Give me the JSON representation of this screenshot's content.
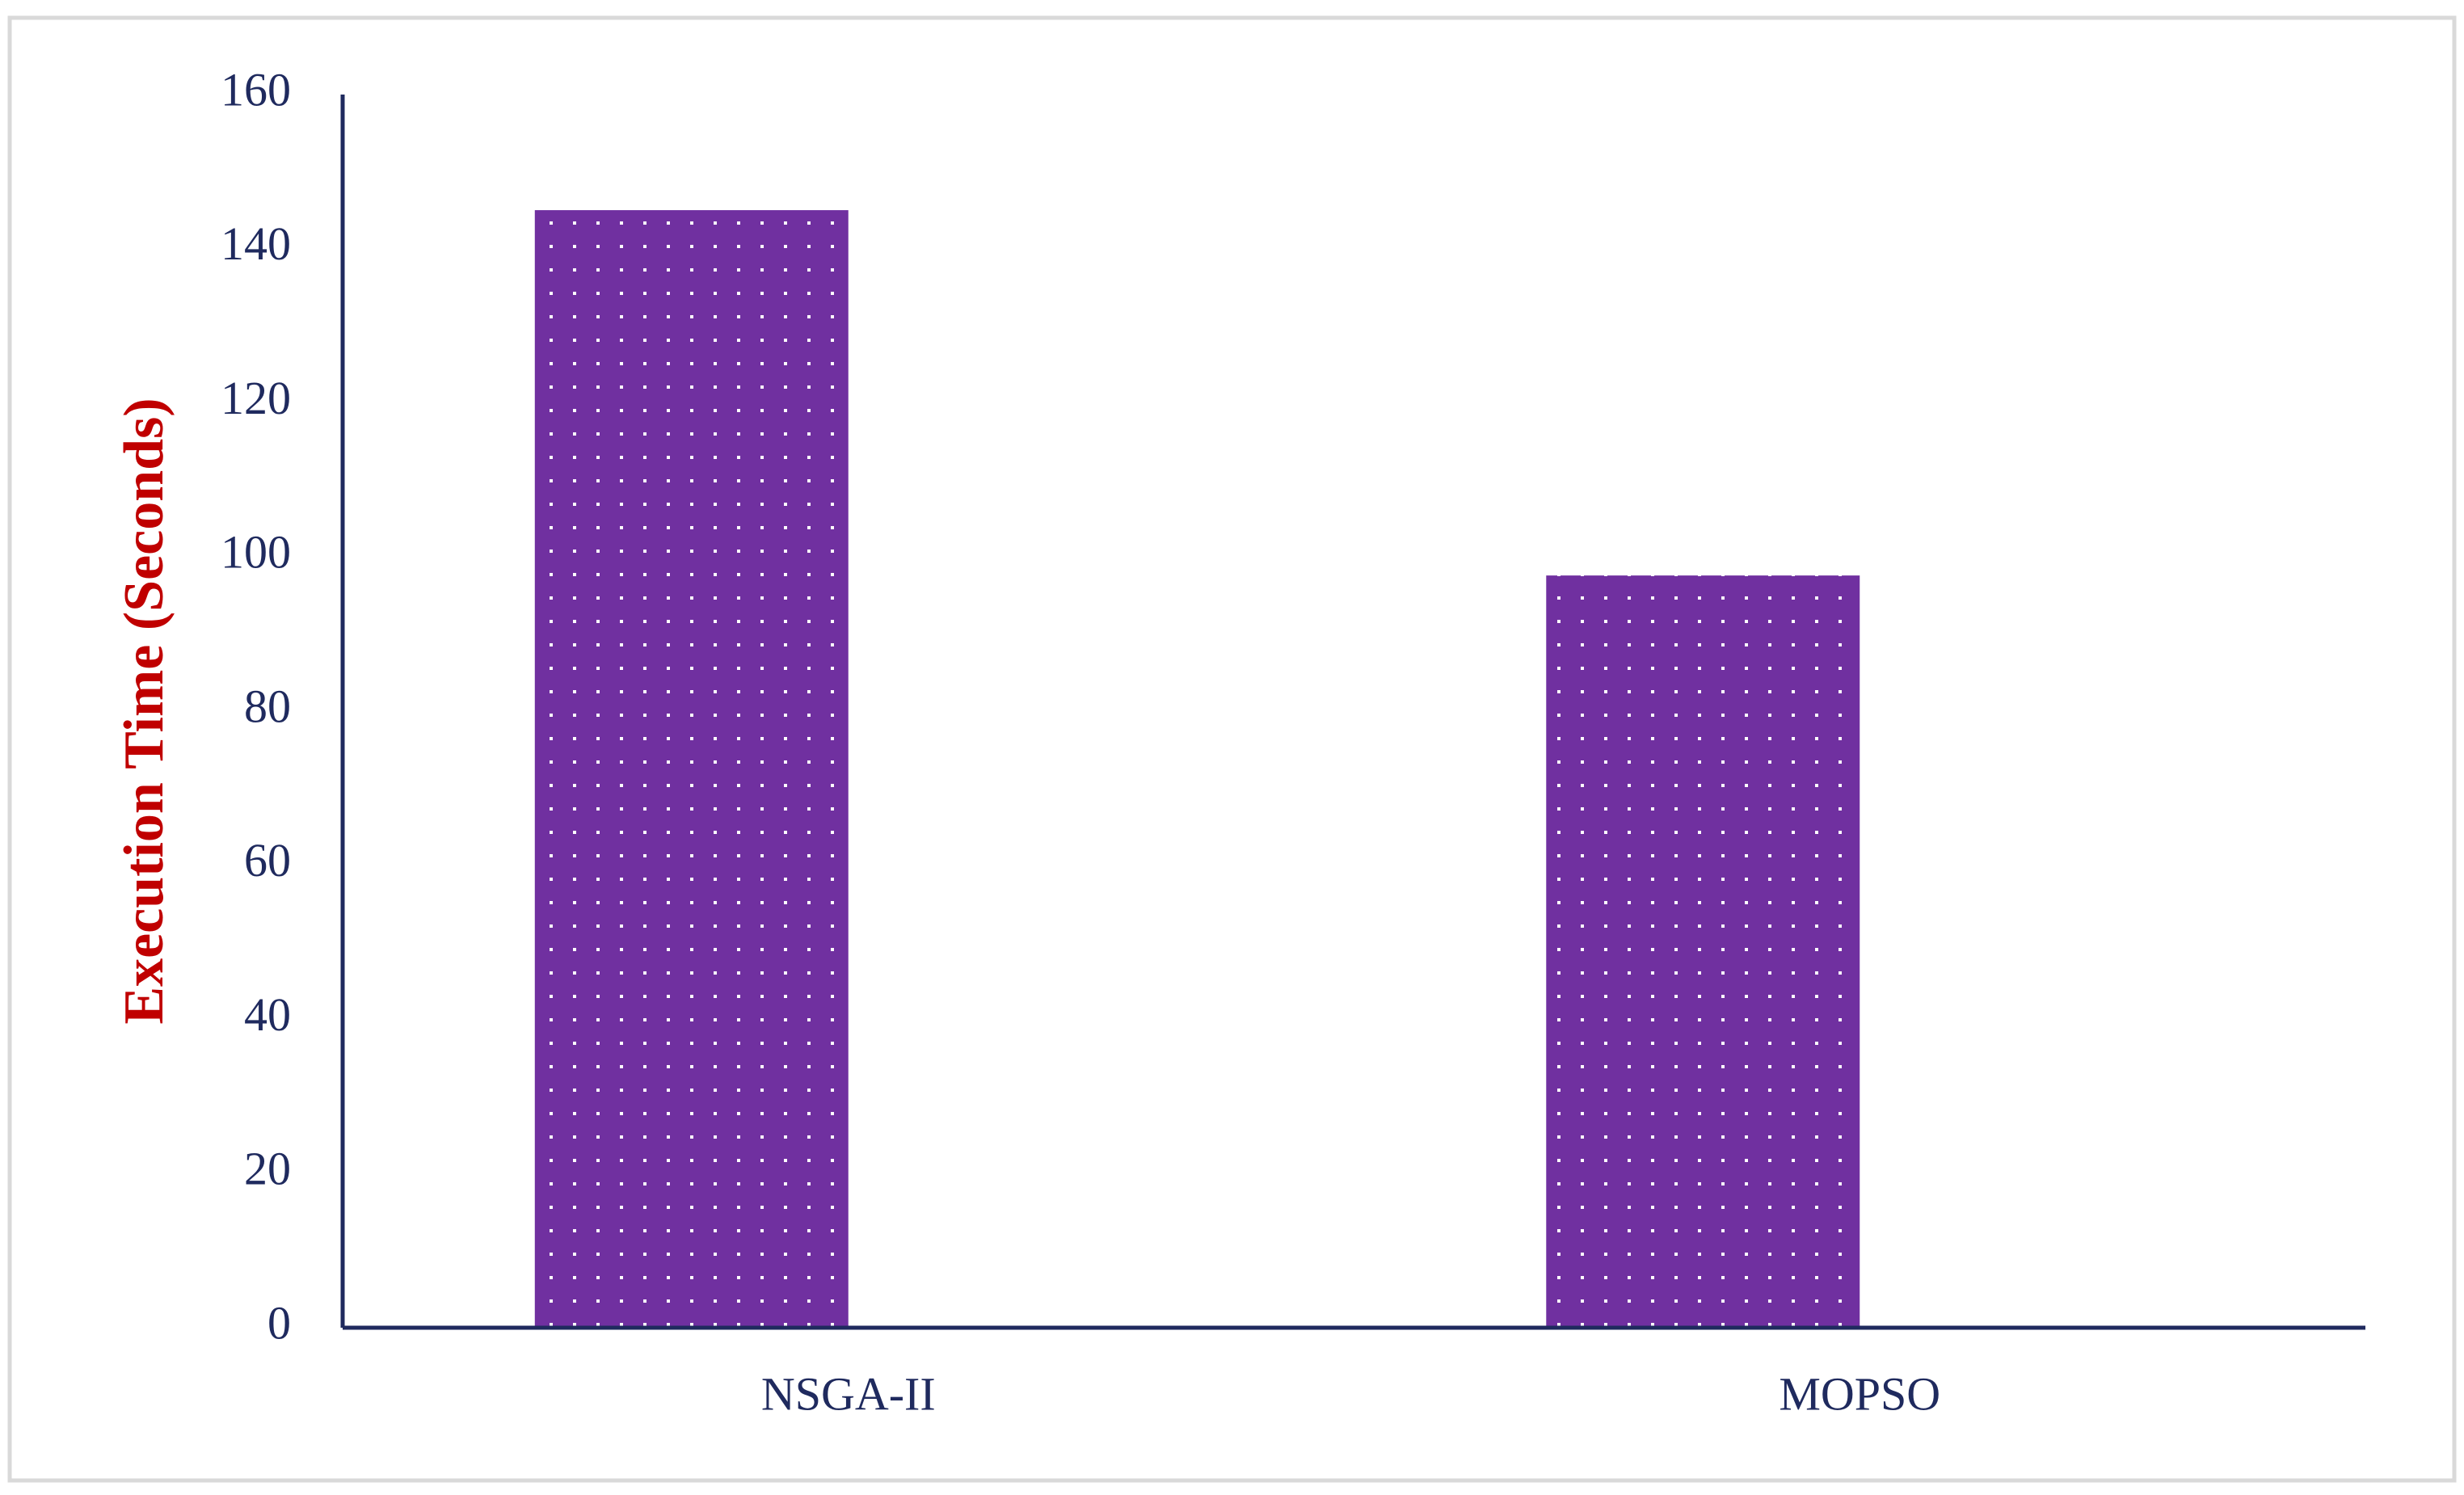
{
  "chart_data": {
    "type": "bar",
    "y_label": "Execution Time (Seconds)",
    "categories": [
      "NSGA-II",
      "MOPSO"
    ],
    "values": [
      145,
      97.6
    ],
    "color": "#7030a0",
    "ylim": [
      0,
      160
    ],
    "yticks": [
      0,
      20,
      40,
      60,
      80,
      100,
      120,
      140,
      160
    ],
    "grid": false
  }
}
